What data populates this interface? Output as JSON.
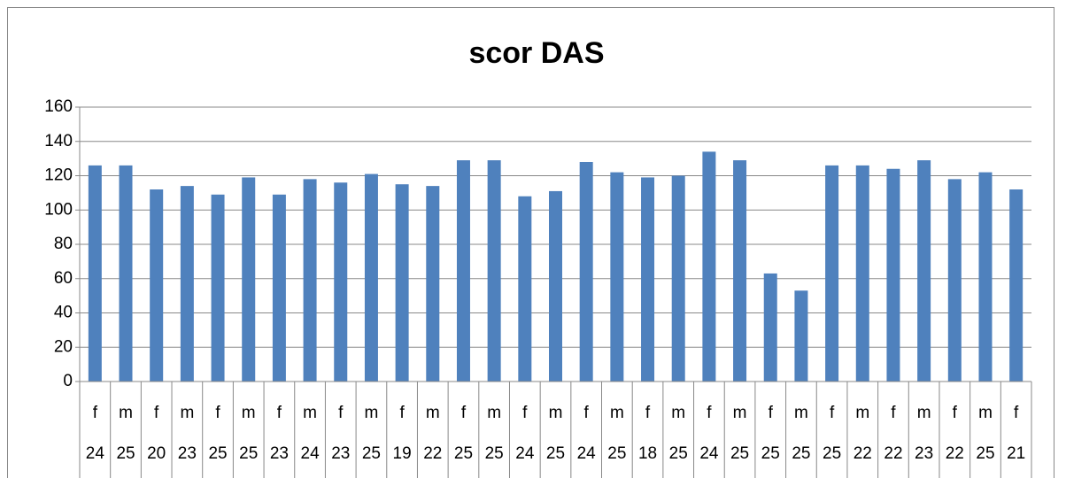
{
  "chart_data": {
    "type": "bar",
    "title": "scor DAS",
    "categories": [
      [
        "f",
        "24"
      ],
      [
        "m",
        "25"
      ],
      [
        "f",
        "20"
      ],
      [
        "m",
        "23"
      ],
      [
        "f",
        "25"
      ],
      [
        "m",
        "25"
      ],
      [
        "f",
        "23"
      ],
      [
        "m",
        "24"
      ],
      [
        "f",
        "23"
      ],
      [
        "m",
        "25"
      ],
      [
        "f",
        "19"
      ],
      [
        "m",
        "22"
      ],
      [
        "f",
        "25"
      ],
      [
        "m",
        "25"
      ],
      [
        "f",
        "24"
      ],
      [
        "m",
        "25"
      ],
      [
        "f",
        "24"
      ],
      [
        "m",
        "25"
      ],
      [
        "f",
        "18"
      ],
      [
        "m",
        "25"
      ],
      [
        "f",
        "24"
      ],
      [
        "m",
        "25"
      ],
      [
        "f",
        "25"
      ],
      [
        "m",
        "25"
      ],
      [
        "f",
        "25"
      ],
      [
        "m",
        "22"
      ],
      [
        "f",
        "22"
      ],
      [
        "m",
        "23"
      ],
      [
        "f",
        "22"
      ],
      [
        "m",
        "25"
      ],
      [
        "f",
        "21"
      ]
    ],
    "values": [
      126,
      126,
      112,
      114,
      109,
      119,
      109,
      118,
      116,
      121,
      115,
      114,
      129,
      129,
      108,
      111,
      128,
      122,
      119,
      120,
      134,
      129,
      63,
      53,
      126,
      126,
      124,
      129,
      118,
      122,
      112
    ],
    "color": "#4f81bd",
    "ylim": [
      0,
      160
    ],
    "yticks": [
      0,
      20,
      40,
      60,
      80,
      100,
      120,
      140,
      160
    ],
    "grid": true
  }
}
